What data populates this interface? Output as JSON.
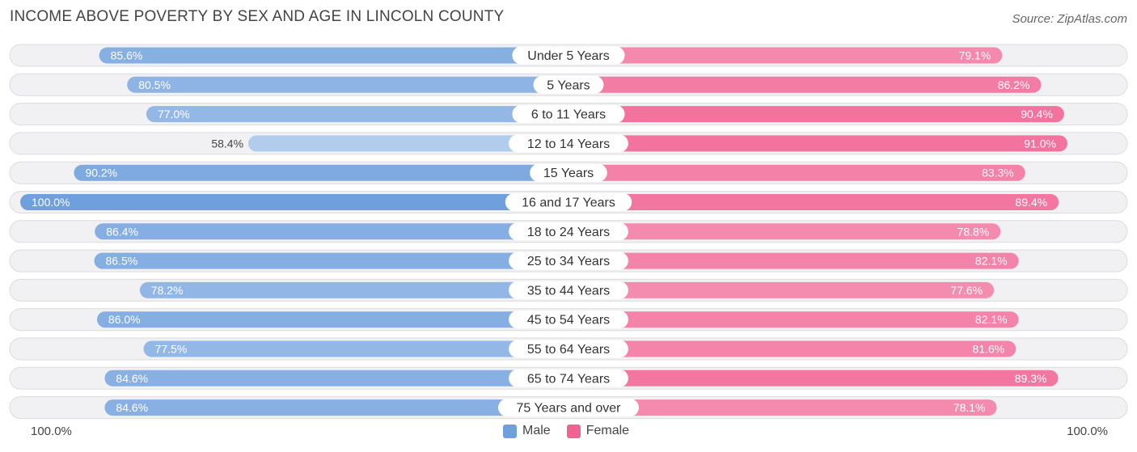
{
  "header": {
    "title": "INCOME ABOVE POVERTY BY SEX AND AGE IN LINCOLN COUNTY",
    "source": "Source: ZipAtlas.com"
  },
  "axis": {
    "left_label": "100.0%",
    "right_label": "100.0%"
  },
  "legend": [
    {
      "name": "Male",
      "color": "#6f9fdc"
    },
    {
      "name": "Female",
      "color": "#f06292"
    }
  ],
  "chart_data": {
    "type": "bar",
    "orientation": "horizontal-diverging",
    "title": "INCOME ABOVE POVERTY BY SEX AND AGE IN LINCOLN COUNTY",
    "categories": [
      "Under 5 Years",
      "5 Years",
      "6 to 11 Years",
      "12 to 14 Years",
      "15 Years",
      "16 and 17 Years",
      "18 to 24 Years",
      "25 to 34 Years",
      "35 to 44 Years",
      "45 to 54 Years",
      "55 to 64 Years",
      "65 to 74 Years",
      "75 Years and over"
    ],
    "series": [
      {
        "name": "Male",
        "values": [
          85.6,
          80.5,
          77.0,
          58.4,
          90.2,
          100.0,
          86.4,
          86.5,
          78.2,
          86.0,
          77.5,
          84.6,
          84.6
        ],
        "labels": [
          "85.6%",
          "80.5%",
          "77.0%",
          "58.4%",
          "90.2%",
          "100.0%",
          "86.4%",
          "86.5%",
          "78.2%",
          "86.0%",
          "77.5%",
          "84.6%",
          "84.6%"
        ]
      },
      {
        "name": "Female",
        "values": [
          79.1,
          86.2,
          90.4,
          91.0,
          83.3,
          89.4,
          78.8,
          82.1,
          77.6,
          82.1,
          81.6,
          89.3,
          78.1
        ],
        "labels": [
          "79.1%",
          "86.2%",
          "90.4%",
          "91.0%",
          "83.3%",
          "89.4%",
          "78.8%",
          "82.1%",
          "77.6%",
          "82.1%",
          "81.6%",
          "89.3%",
          "78.1%"
        ]
      }
    ],
    "xlim": [
      0,
      100
    ],
    "xlabel": "",
    "ylabel": ""
  }
}
